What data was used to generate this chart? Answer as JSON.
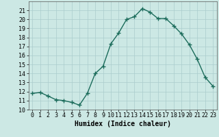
{
  "x": [
    0,
    1,
    2,
    3,
    4,
    5,
    6,
    7,
    8,
    9,
    10,
    11,
    12,
    13,
    14,
    15,
    16,
    17,
    18,
    19,
    20,
    21,
    22,
    23
  ],
  "y": [
    11.8,
    11.9,
    11.5,
    11.1,
    11.0,
    10.8,
    10.5,
    11.8,
    14.0,
    14.8,
    17.3,
    18.5,
    20.0,
    20.3,
    21.2,
    20.8,
    20.1,
    20.1,
    19.3,
    18.4,
    17.2,
    15.6,
    13.6,
    12.6
  ],
  "line_color": "#1a6b5a",
  "marker": "+",
  "markersize": 4,
  "markeredgewidth": 1.0,
  "linewidth": 1.0,
  "xlabel": "Humidex (Indice chaleur)",
  "xlabel_fontsize": 7,
  "xlim": [
    -0.5,
    23.5
  ],
  "ylim": [
    10,
    22
  ],
  "yticks": [
    10,
    11,
    12,
    13,
    14,
    15,
    16,
    17,
    18,
    19,
    20,
    21
  ],
  "xtick_labels": [
    "0",
    "1",
    "2",
    "3",
    "4",
    "5",
    "6",
    "7",
    "8",
    "9",
    "10",
    "11",
    "12",
    "13",
    "14",
    "15",
    "16",
    "17",
    "18",
    "19",
    "20",
    "21",
    "22",
    "23"
  ],
  "bg_color": "#cce8e4",
  "grid_color": "#aacccc",
  "tick_fontsize": 6,
  "spine_color": "#555555"
}
